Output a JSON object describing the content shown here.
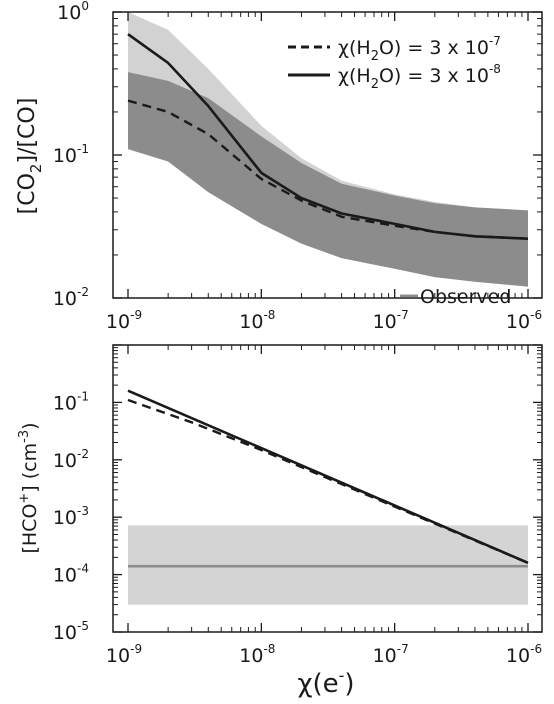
{
  "chart_data": [
    {
      "type": "line",
      "panel": "top",
      "xscale": "log",
      "yscale": "log",
      "xlim": [
        1e-09,
        1e-06
      ],
      "ylim": [
        0.01,
        1
      ],
      "ylabel": "[CO2]/[CO]",
      "ylabel_parts": [
        "[CO",
        "2",
        "]/[CO]"
      ],
      "x_ticks": [
        {
          "base": "10",
          "exp": "-9"
        },
        {
          "base": "10",
          "exp": "-8"
        },
        {
          "base": "10",
          "exp": "-7"
        },
        {
          "base": "10",
          "exp": "-6"
        }
      ],
      "y_ticks": [
        {
          "base": "10",
          "exp": "-2"
        },
        {
          "base": "10",
          "exp": "-1"
        },
        {
          "base": "10",
          "exp": "0"
        }
      ],
      "legend_position": "top-right",
      "series": [
        {
          "name": "χ(H2O) = 3 x 10-7",
          "label_parts": [
            "χ(H",
            "2",
            "O) = 3 x 10",
            "-7"
          ],
          "style": "dashed",
          "color": "#1a1a1a",
          "x": [
            1e-09,
            2e-09,
            4e-09,
            1e-08,
            2e-08,
            4e-08,
            1e-07,
            2e-07,
            4e-07,
            1e-06
          ],
          "y": [
            0.24,
            0.2,
            0.14,
            0.068,
            0.048,
            0.037,
            0.032,
            0.029,
            0.027,
            0.026
          ],
          "band": {
            "color": "#8c8c8c",
            "lower": [
              0.11,
              0.09,
              0.055,
              0.033,
              0.024,
              0.019,
              0.016,
              0.014,
              0.013,
              0.012
            ],
            "upper": [
              0.38,
              0.33,
              0.25,
              0.135,
              0.088,
              0.063,
              0.052,
              0.046,
              0.043,
              0.041
            ]
          }
        },
        {
          "name": "χ(H2O) = 3 x 10-8",
          "label_parts": [
            "χ(H",
            "2",
            "O) = 3 x 10",
            "-8"
          ],
          "style": "solid",
          "color": "#1a1a1a",
          "x": [
            1e-09,
            2e-09,
            4e-09,
            1e-08,
            2e-08,
            4e-08,
            1e-07,
            2e-07,
            4e-07,
            1e-06
          ],
          "y": [
            0.7,
            0.44,
            0.22,
            0.075,
            0.05,
            0.039,
            0.033,
            0.029,
            0.027,
            0.026
          ],
          "band": {
            "color": "#d2d2d2",
            "lower": [
              0.11,
              0.09,
              0.055,
              0.033,
              0.024,
              0.019,
              0.016,
              0.014,
              0.013,
              0.012
            ],
            "upper": [
              1.0,
              0.75,
              0.4,
              0.16,
              0.095,
              0.066,
              0.053,
              0.047,
              0.043,
              0.041
            ]
          }
        }
      ]
    },
    {
      "type": "line",
      "panel": "bottom",
      "xscale": "log",
      "yscale": "log",
      "xlim": [
        1e-09,
        1e-06
      ],
      "ylim": [
        1e-05,
        1
      ],
      "xlabel": "χ(e-)",
      "xlabel_parts": [
        "χ(e",
        "-",
        ")"
      ],
      "ylabel": "[HCO+] (cm-3)",
      "ylabel_parts": [
        "[HCO",
        "+",
        "] (cm",
        "-3",
        ")"
      ],
      "x_ticks": [
        {
          "base": "10",
          "exp": "-9"
        },
        {
          "base": "10",
          "exp": "-8"
        },
        {
          "base": "10",
          "exp": "-7"
        },
        {
          "base": "10",
          "exp": "-6"
        }
      ],
      "y_ticks": [
        {
          "base": "10",
          "exp": "-5"
        },
        {
          "base": "10",
          "exp": "-4"
        },
        {
          "base": "10",
          "exp": "-3"
        },
        {
          "base": "10",
          "exp": "-2"
        },
        {
          "base": "10",
          "exp": "-1"
        }
      ],
      "legend_position": "top-right",
      "series": [
        {
          "name": "",
          "style": "solid",
          "color": "#1a1a1a",
          "x": [
            1e-09,
            1e-06
          ],
          "y": [
            0.16,
            0.00016
          ]
        },
        {
          "name": "",
          "style": "dashed",
          "color": "#1a1a1a",
          "x": [
            1e-09,
            3e-09,
            1e-08,
            3e-08,
            1e-07,
            1e-06
          ],
          "y": [
            0.11,
            0.045,
            0.0148,
            0.005,
            0.00153,
            0.00016
          ]
        },
        {
          "name": "Observed",
          "style": "solid",
          "color": "#8c8c8c",
          "x": [
            1e-09,
            1e-06
          ],
          "y": [
            0.00014,
            0.00014
          ],
          "band": {
            "color": "#d4d4d4",
            "lower": [
              3e-05,
              3e-05
            ],
            "upper": [
              0.00072,
              0.00072
            ]
          }
        }
      ]
    }
  ]
}
